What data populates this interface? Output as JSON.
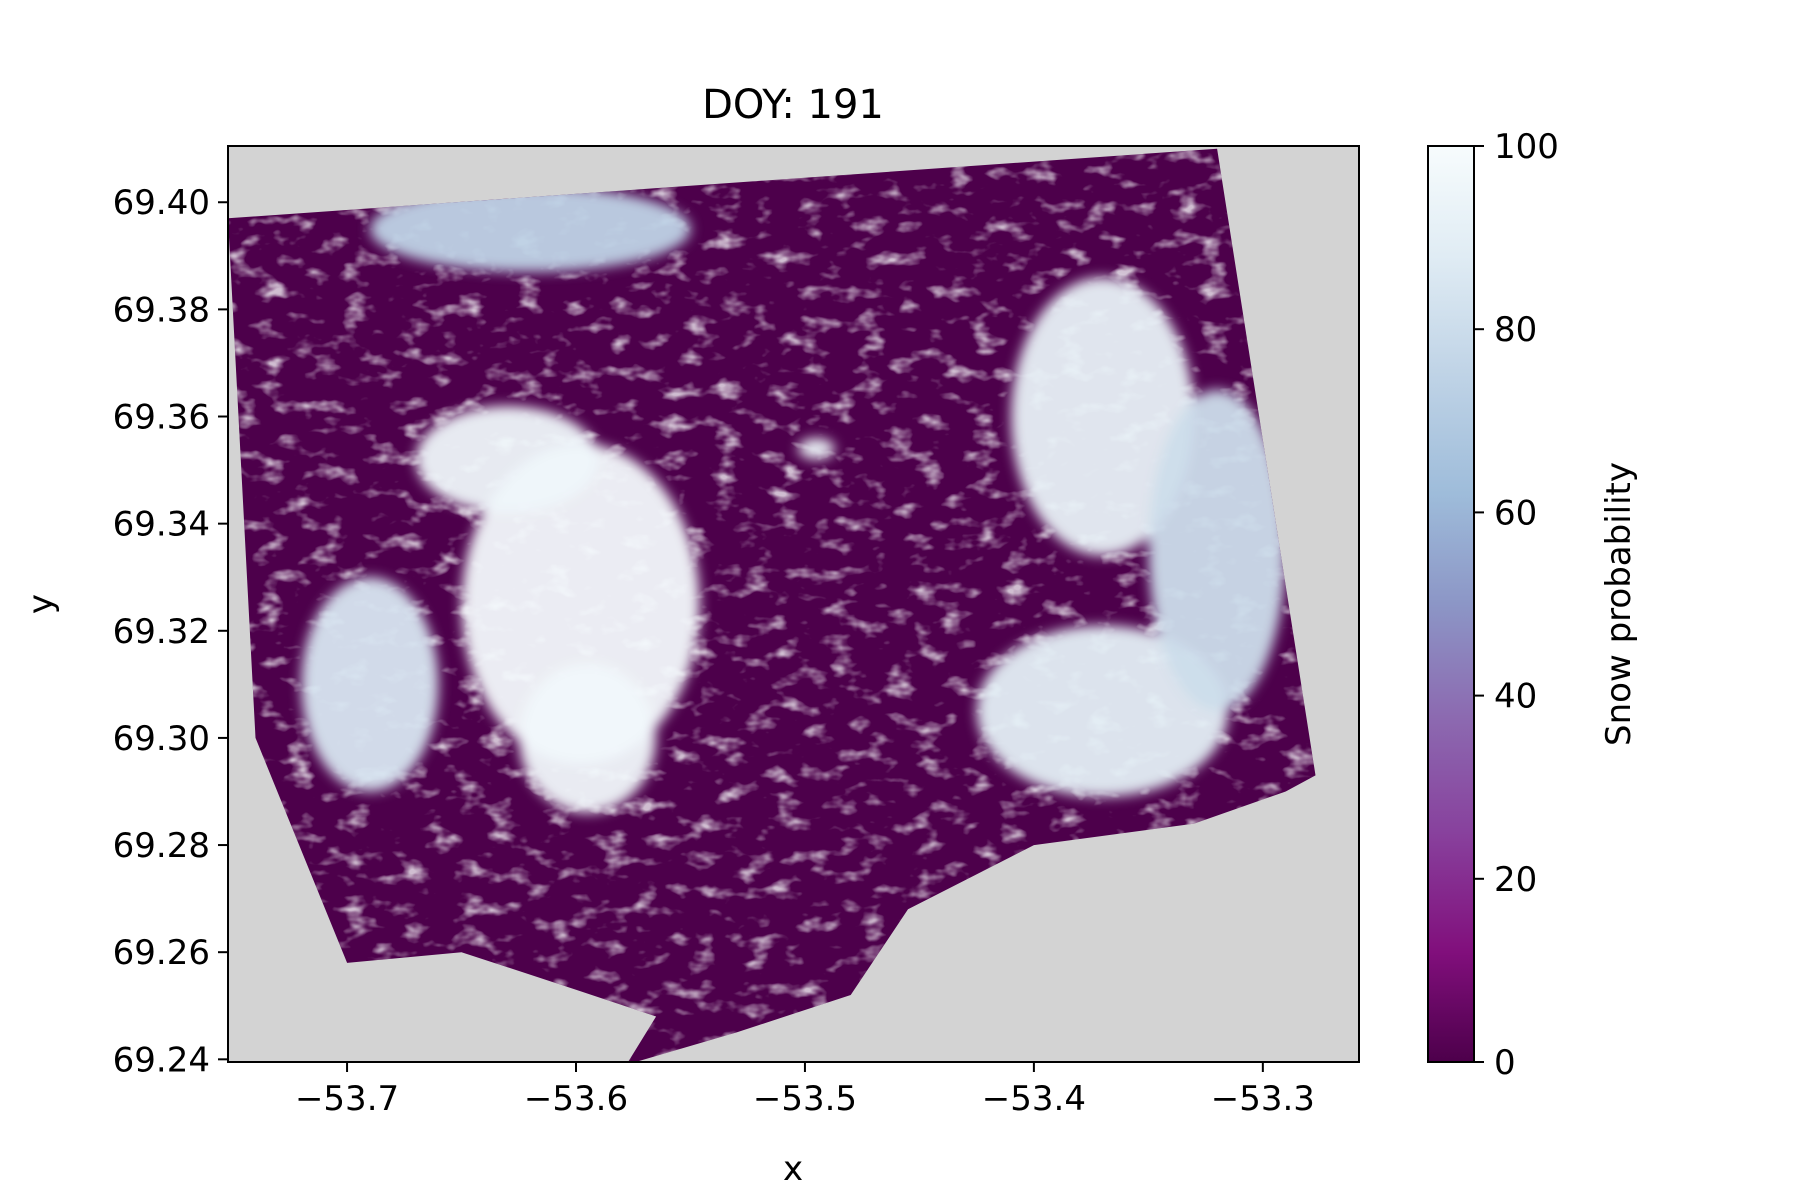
{
  "chart_data": {
    "type": "heatmap",
    "title": "DOY: 191",
    "xlabel": "x",
    "ylabel": "y",
    "xlim": [
      -53.752,
      -53.258
    ],
    "ylim": [
      69.2395,
      69.4105
    ],
    "x_ticks": [
      -53.7,
      -53.6,
      -53.5,
      -53.4,
      -53.3
    ],
    "x_tick_labels": [
      "−53.7",
      "−53.6",
      "−53.5",
      "−53.4",
      "−53.3"
    ],
    "y_ticks": [
      69.24,
      69.26,
      69.28,
      69.3,
      69.32,
      69.34,
      69.36,
      69.38,
      69.4
    ],
    "y_tick_labels": [
      "69.24",
      "69.26",
      "69.28",
      "69.30",
      "69.32",
      "69.34",
      "69.36",
      "69.38",
      "69.40"
    ],
    "grid": false,
    "colormap": "BuPu",
    "nodata_color": "#d3d3d3",
    "colorbar": {
      "label": "Snow probability",
      "range": [
        0,
        100
      ],
      "ticks": [
        0,
        20,
        40,
        60,
        80,
        100
      ],
      "tick_labels": [
        "0",
        "20",
        "40",
        "60",
        "80",
        "100"
      ],
      "stops": [
        {
          "value": 0,
          "color": "#4d004b"
        },
        {
          "value": 12,
          "color": "#810f7c"
        },
        {
          "value": 25,
          "color": "#88419d"
        },
        {
          "value": 38,
          "color": "#8c6bb1"
        },
        {
          "value": 50,
          "color": "#8c96c6"
        },
        {
          "value": 62,
          "color": "#9ebcda"
        },
        {
          "value": 75,
          "color": "#bfd3e6"
        },
        {
          "value": 88,
          "color": "#e0ecf4"
        },
        {
          "value": 100,
          "color": "#f7fcfd"
        }
      ]
    },
    "data_footprint_lonlat": [
      [
        -53.752,
        69.397
      ],
      [
        -53.32,
        69.41
      ],
      [
        -53.277,
        69.293
      ],
      [
        -53.29,
        69.29
      ],
      [
        -53.33,
        69.284
      ],
      [
        -53.4,
        69.28
      ],
      [
        -53.455,
        69.268
      ],
      [
        -53.48,
        69.252
      ],
      [
        -53.53,
        69.245
      ],
      [
        -53.578,
        69.239
      ],
      [
        -53.565,
        69.248
      ],
      [
        -53.6,
        69.253
      ],
      [
        -53.65,
        69.26
      ],
      [
        -53.7,
        69.258
      ],
      [
        -53.74,
        69.3
      ],
      [
        -53.752,
        69.397
      ]
    ],
    "snow_regions": [
      {
        "name": "main-icecap",
        "center": [
          -53.598,
          69.325
        ],
        "radius": [
          0.052,
          0.03
        ],
        "value": 98
      },
      {
        "name": "icecap-tongue-nw",
        "center": [
          -53.63,
          69.352
        ],
        "radius": [
          0.04,
          0.01
        ],
        "value": 96
      },
      {
        "name": "icecap-south",
        "center": [
          -53.595,
          69.3
        ],
        "radius": [
          0.03,
          0.014
        ],
        "value": 97
      },
      {
        "name": "northeast-plateau",
        "center": [
          -53.37,
          69.36
        ],
        "radius": [
          0.04,
          0.026
        ],
        "value": 92
      },
      {
        "name": "southeast-field",
        "center": [
          -53.37,
          69.305
        ],
        "radius": [
          0.055,
          0.016
        ],
        "value": 90
      },
      {
        "name": "west-patch",
        "center": [
          -53.69,
          69.31
        ],
        "radius": [
          0.03,
          0.02
        ],
        "value": 85
      },
      {
        "name": "north-ridge",
        "center": [
          -53.62,
          69.395
        ],
        "radius": [
          0.07,
          0.008
        ],
        "value": 75
      },
      {
        "name": "east-slopes",
        "center": [
          -53.32,
          69.335
        ],
        "radius": [
          0.03,
          0.03
        ],
        "value": 80
      },
      {
        "name": "small-lake-patch",
        "center": [
          -53.495,
          69.354
        ],
        "radius": [
          0.008,
          0.002
        ],
        "value": 95
      }
    ]
  }
}
